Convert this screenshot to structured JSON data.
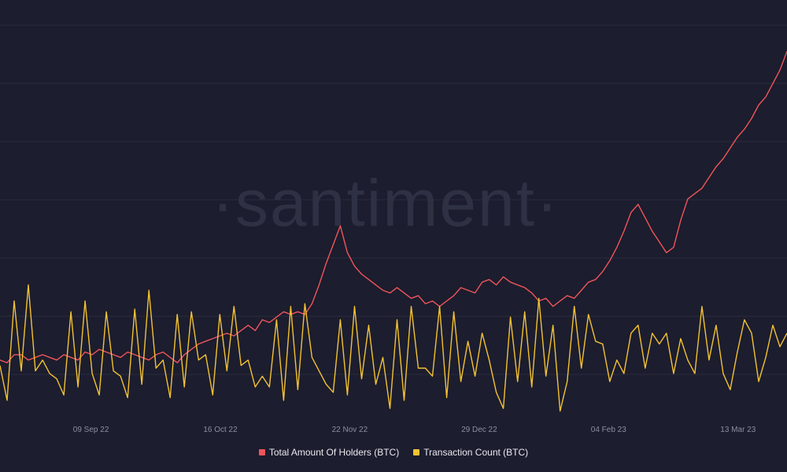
{
  "watermark": "·santiment·",
  "colors": {
    "background": "#1c1d2e",
    "grid": "#2a2c3f",
    "holders": "#f0555b",
    "transactions": "#f3c233",
    "tick": "#8b8fa3"
  },
  "chart_data": {
    "type": "line",
    "x_axis": {
      "start": "2022-08-14",
      "end": "2023-03-27",
      "ticks": [
        {
          "date": "2022-09-09",
          "label": "09 Sep 22"
        },
        {
          "date": "2022-10-16",
          "label": "16 Oct 22"
        },
        {
          "date": "2022-11-22",
          "label": "22 Nov 22"
        },
        {
          "date": "2022-12-29",
          "label": "29 Dec 22"
        },
        {
          "date": "2023-02-04",
          "label": "04 Feb 23"
        },
        {
          "date": "2023-03-13",
          "label": "13 Mar 23"
        }
      ]
    },
    "grid": true,
    "legend_position": "bottom-center",
    "y_axis_labels_shown": false,
    "series": [
      {
        "name": "Total Amount Of Holders (BTC)",
        "color": "#f0555b",
        "values": [
          0.2,
          0.19,
          0.22,
          0.22,
          0.2,
          0.21,
          0.22,
          0.21,
          0.2,
          0.22,
          0.21,
          0.2,
          0.23,
          0.22,
          0.24,
          0.23,
          0.22,
          0.21,
          0.23,
          0.22,
          0.21,
          0.2,
          0.22,
          0.23,
          0.21,
          0.19,
          0.22,
          0.24,
          0.26,
          0.27,
          0.28,
          0.29,
          0.3,
          0.29,
          0.31,
          0.33,
          0.31,
          0.35,
          0.34,
          0.36,
          0.38,
          0.37,
          0.38,
          0.37,
          0.41,
          0.48,
          0.56,
          0.63,
          0.7,
          0.6,
          0.55,
          0.52,
          0.5,
          0.48,
          0.46,
          0.45,
          0.47,
          0.45,
          0.43,
          0.44,
          0.41,
          0.42,
          0.4,
          0.42,
          0.44,
          0.47,
          0.46,
          0.45,
          0.49,
          0.5,
          0.48,
          0.51,
          0.49,
          0.48,
          0.47,
          0.45,
          0.42,
          0.43,
          0.4,
          0.42,
          0.44,
          0.43,
          0.46,
          0.49,
          0.5,
          0.53,
          0.57,
          0.62,
          0.68,
          0.75,
          0.78,
          0.73,
          0.68,
          0.64,
          0.6,
          0.62,
          0.72,
          0.8,
          0.82,
          0.84,
          0.88,
          0.92,
          0.95,
          0.99,
          1.03,
          1.06,
          1.1,
          1.15,
          1.18,
          1.23,
          1.28,
          1.35
        ]
      },
      {
        "name": "Transaction Count (BTC)",
        "color": "#f3c233",
        "values": [
          0.18,
          0.05,
          0.42,
          0.16,
          0.48,
          0.16,
          0.2,
          0.15,
          0.13,
          0.07,
          0.38,
          0.1,
          0.42,
          0.15,
          0.07,
          0.38,
          0.16,
          0.14,
          0.06,
          0.39,
          0.11,
          0.46,
          0.17,
          0.2,
          0.06,
          0.37,
          0.1,
          0.38,
          0.2,
          0.22,
          0.07,
          0.37,
          0.16,
          0.4,
          0.18,
          0.2,
          0.1,
          0.14,
          0.1,
          0.35,
          0.05,
          0.4,
          0.09,
          0.41,
          0.21,
          0.16,
          0.11,
          0.08,
          0.35,
          0.07,
          0.4,
          0.13,
          0.33,
          0.11,
          0.21,
          0.02,
          0.35,
          0.05,
          0.4,
          0.17,
          0.17,
          0.14,
          0.4,
          0.06,
          0.38,
          0.12,
          0.27,
          0.14,
          0.3,
          0.2,
          0.08,
          0.02,
          0.36,
          0.12,
          0.38,
          0.1,
          0.43,
          0.14,
          0.33,
          0.01,
          0.12,
          0.4,
          0.17,
          0.37,
          0.27,
          0.26,
          0.12,
          0.2,
          0.15,
          0.3,
          0.33,
          0.17,
          0.3,
          0.26,
          0.3,
          0.15,
          0.28,
          0.2,
          0.15,
          0.4,
          0.2,
          0.33,
          0.15,
          0.09,
          0.23,
          0.35,
          0.3,
          0.12,
          0.21,
          0.33,
          0.25,
          0.3
        ]
      }
    ]
  }
}
